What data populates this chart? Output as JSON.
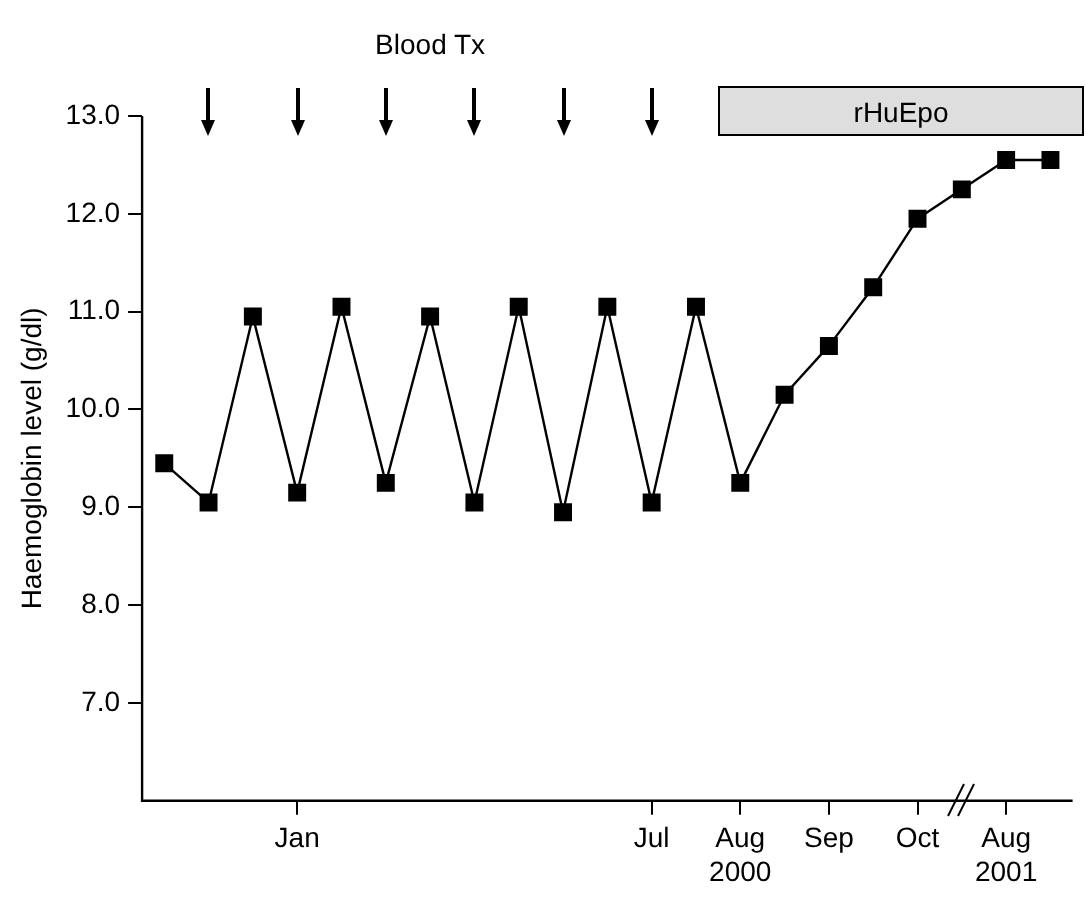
{
  "chart_data": {
    "type": "line",
    "ylabel": "Haemoglobin level (g/dl)",
    "categories": [
      null,
      null,
      null,
      "Jan",
      null,
      null,
      null,
      null,
      null,
      null,
      null,
      "Jul",
      null,
      "Aug\n2000",
      null,
      "Sep",
      null,
      "Oct",
      null,
      "Aug\n2001",
      null
    ],
    "series": [
      {
        "color": "#000000",
        "values": [
          9.45,
          9.05,
          10.95,
          9.15,
          11.05,
          9.25,
          10.95,
          9.05,
          11.05,
          8.95,
          11.05,
          9.05,
          11.05,
          9.25,
          10.15,
          10.65,
          11.25,
          11.95,
          12.25,
          12.55,
          12.55
        ]
      }
    ],
    "ylim": [
      6,
      13
    ],
    "yticks": [
      {
        "value": 7,
        "label": "7.0"
      },
      {
        "value": 8,
        "label": "8.0"
      },
      {
        "value": 9,
        "label": "9.0"
      },
      {
        "value": 10,
        "label": "10.0"
      },
      {
        "value": 11,
        "label": "11.0"
      },
      {
        "value": 12,
        "label": "12.0"
      },
      {
        "value": 13,
        "label": "13.0"
      }
    ],
    "annotations": [
      "Blood Tx",
      "rHuEpo"
    ],
    "marker": "square",
    "line_style": "solid",
    "grid": false,
    "legend": false
  }
}
